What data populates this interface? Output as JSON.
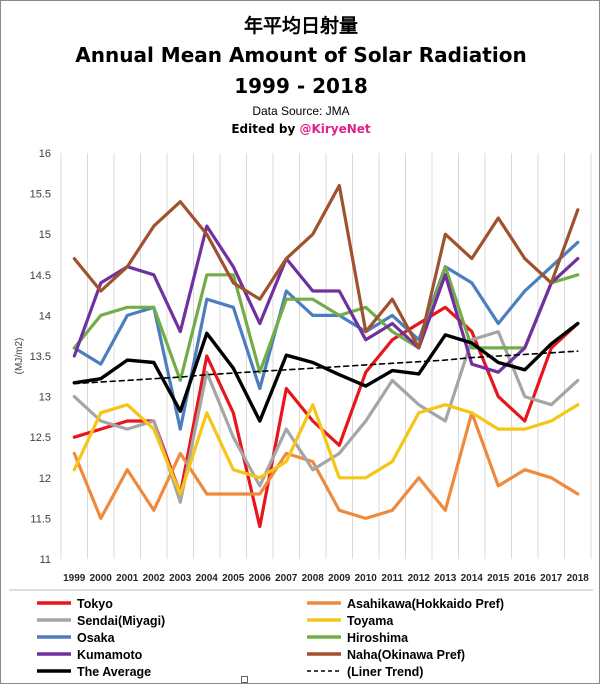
{
  "title_jp": "年平均日射量",
  "title": "Annual Mean Amount of Solar Radiation",
  "period": "1999 - 2018",
  "source": "Data Source: JMA",
  "edited_prefix": "Edited by ",
  "edited_handle": "@KiryeNet",
  "chart_data": {
    "type": "line",
    "ylabel": "(MJ/m2)",
    "ylim": [
      11,
      16
    ],
    "yticks": [
      "11",
      "11.5",
      "12",
      "12.5",
      "13",
      "13.5",
      "14",
      "14.5",
      "15",
      "15.5",
      "16"
    ],
    "grid": "vertical",
    "legend_position": "bottom",
    "x": [
      "1999",
      "2000",
      "2001",
      "2002",
      "2003",
      "2004",
      "2005",
      "2006",
      "2007",
      "2008",
      "2009",
      "2010",
      "2011",
      "2012",
      "2013",
      "2014",
      "2015",
      "2016",
      "2017",
      "2018"
    ],
    "series": [
      {
        "name": "Tokyo",
        "color": "#e8151b",
        "values": [
          12.5,
          12.6,
          12.7,
          12.7,
          11.8,
          13.5,
          12.8,
          11.4,
          13.1,
          12.7,
          12.4,
          13.3,
          13.7,
          13.9,
          14.1,
          13.8,
          13.0,
          12.7,
          13.6,
          13.9
        ]
      },
      {
        "name": "Asahikawa(Hokkaido Pref)",
        "color": "#ee8a3e",
        "values": [
          12.3,
          11.5,
          12.1,
          11.6,
          12.3,
          11.8,
          11.8,
          11.8,
          12.3,
          12.2,
          11.6,
          11.5,
          11.6,
          12.0,
          11.6,
          12.8,
          11.9,
          12.1,
          12.0,
          11.8
        ]
      },
      {
        "name": "Sendai(Miyagi)",
        "color": "#a5a5a5",
        "values": [
          13.0,
          12.7,
          12.6,
          12.7,
          11.7,
          13.3,
          12.5,
          11.9,
          12.6,
          12.1,
          12.3,
          12.7,
          13.2,
          12.9,
          12.7,
          13.7,
          13.8,
          13.0,
          12.9,
          13.2
        ]
      },
      {
        "name": "Toyama",
        "color": "#f5c518",
        "values": [
          12.1,
          12.8,
          12.9,
          12.6,
          11.8,
          12.8,
          12.1,
          12.0,
          12.2,
          12.9,
          12.0,
          12.0,
          12.2,
          12.8,
          12.9,
          12.8,
          12.6,
          12.6,
          12.7,
          12.9
        ]
      },
      {
        "name": "Osaka",
        "color": "#4a7ebf",
        "values": [
          13.6,
          13.4,
          14.0,
          14.1,
          12.6,
          14.2,
          14.1,
          13.1,
          14.3,
          14.0,
          14.0,
          13.8,
          14.0,
          13.7,
          14.6,
          14.4,
          13.9,
          14.3,
          14.6,
          14.9
        ]
      },
      {
        "name": "Hiroshima",
        "color": "#72ad47",
        "values": [
          13.6,
          14.0,
          14.1,
          14.1,
          13.2,
          14.5,
          14.5,
          13.3,
          14.2,
          14.2,
          14.0,
          14.1,
          13.8,
          13.6,
          14.6,
          13.6,
          13.6,
          13.6,
          14.4,
          14.5
        ]
      },
      {
        "name": "Kumamoto",
        "color": "#7030a0",
        "values": [
          13.5,
          14.4,
          14.6,
          14.5,
          13.8,
          15.1,
          14.6,
          13.9,
          14.7,
          14.3,
          14.3,
          13.7,
          13.9,
          13.6,
          14.5,
          13.4,
          13.3,
          13.6,
          14.4,
          14.7
        ]
      },
      {
        "name": "Naha(Okinawa Pref)",
        "color": "#a0522d",
        "values": [
          14.7,
          14.3,
          14.6,
          15.1,
          15.4,
          15.0,
          14.4,
          14.2,
          14.7,
          15.0,
          15.6,
          13.8,
          14.2,
          13.6,
          15.0,
          14.7,
          15.2,
          14.7,
          14.4,
          15.3
        ]
      },
      {
        "name": "The Average",
        "color": "#000000",
        "values": [
          13.17,
          13.22,
          13.45,
          13.42,
          12.82,
          13.78,
          13.35,
          12.7,
          13.51,
          13.42,
          13.27,
          13.13,
          13.32,
          13.28,
          13.76,
          13.66,
          13.42,
          13.33,
          13.65,
          13.9
        ]
      },
      {
        "name": "(Liner Trend)",
        "color": "#000000",
        "dashed": true,
        "values": [
          13.16,
          13.18,
          13.2,
          13.22,
          13.24,
          13.27,
          13.29,
          13.31,
          13.33,
          13.35,
          13.37,
          13.39,
          13.41,
          13.43,
          13.45,
          13.48,
          13.5,
          13.52,
          13.54,
          13.56
        ]
      }
    ]
  }
}
